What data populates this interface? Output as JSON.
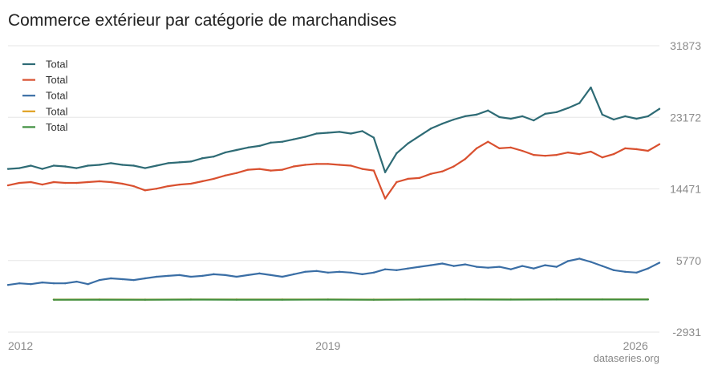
{
  "chart_data": {
    "type": "line",
    "title": "Commerce extérieur par catégorie de marchandises",
    "source": "dataseries.org",
    "xlim": [
      2012.0,
      2026.25
    ],
    "ylim": [
      -2931,
      31873
    ],
    "yticks": [
      31873,
      23172,
      14471,
      5770,
      -2931
    ],
    "xticks": [
      2012,
      2019,
      2026
    ],
    "legend_position": "top-left",
    "grid": true,
    "series": [
      {
        "name": "Total",
        "color": "#2e6b75",
        "points": [
          [
            2012.0,
            16900
          ],
          [
            2012.25,
            17000
          ],
          [
            2012.5,
            17300
          ],
          [
            2012.75,
            16900
          ],
          [
            2013.0,
            17300
          ],
          [
            2013.25,
            17200
          ],
          [
            2013.5,
            17000
          ],
          [
            2013.75,
            17300
          ],
          [
            2014.0,
            17400
          ],
          [
            2014.25,
            17600
          ],
          [
            2014.5,
            17400
          ],
          [
            2014.75,
            17300
          ],
          [
            2015.0,
            17000
          ],
          [
            2015.25,
            17300
          ],
          [
            2015.5,
            17600
          ],
          [
            2015.75,
            17700
          ],
          [
            2016.0,
            17800
          ],
          [
            2016.25,
            18200
          ],
          [
            2016.5,
            18400
          ],
          [
            2016.75,
            18900
          ],
          [
            2017.0,
            19200
          ],
          [
            2017.25,
            19500
          ],
          [
            2017.5,
            19700
          ],
          [
            2017.75,
            20100
          ],
          [
            2018.0,
            20200
          ],
          [
            2018.25,
            20500
          ],
          [
            2018.5,
            20800
          ],
          [
            2018.75,
            21200
          ],
          [
            2019.0,
            21300
          ],
          [
            2019.25,
            21400
          ],
          [
            2019.5,
            21200
          ],
          [
            2019.75,
            21500
          ],
          [
            2020.0,
            20700
          ],
          [
            2020.25,
            16500
          ],
          [
            2020.5,
            18800
          ],
          [
            2020.75,
            20000
          ],
          [
            2021.0,
            20900
          ],
          [
            2021.25,
            21800
          ],
          [
            2021.5,
            22400
          ],
          [
            2021.75,
            22900
          ],
          [
            2022.0,
            23300
          ],
          [
            2022.25,
            23500
          ],
          [
            2022.5,
            24000
          ],
          [
            2022.75,
            23200
          ],
          [
            2023.0,
            23000
          ],
          [
            2023.25,
            23300
          ],
          [
            2023.5,
            22800
          ],
          [
            2023.75,
            23600
          ],
          [
            2024.0,
            23800
          ],
          [
            2024.25,
            24300
          ],
          [
            2024.5,
            24900
          ],
          [
            2024.75,
            26800
          ],
          [
            2025.0,
            23500
          ],
          [
            2025.25,
            22900
          ],
          [
            2025.5,
            23300
          ],
          [
            2025.75,
            23000
          ],
          [
            2026.0,
            23300
          ],
          [
            2026.25,
            24200
          ]
        ]
      },
      {
        "name": "Total",
        "color": "#d9502f",
        "points": [
          [
            2012.0,
            14900
          ],
          [
            2012.25,
            15200
          ],
          [
            2012.5,
            15300
          ],
          [
            2012.75,
            15000
          ],
          [
            2013.0,
            15300
          ],
          [
            2013.25,
            15200
          ],
          [
            2013.5,
            15200
          ],
          [
            2013.75,
            15300
          ],
          [
            2014.0,
            15400
          ],
          [
            2014.25,
            15300
          ],
          [
            2014.5,
            15100
          ],
          [
            2014.75,
            14800
          ],
          [
            2015.0,
            14300
          ],
          [
            2015.25,
            14500
          ],
          [
            2015.5,
            14800
          ],
          [
            2015.75,
            15000
          ],
          [
            2016.0,
            15100
          ],
          [
            2016.25,
            15400
          ],
          [
            2016.5,
            15700
          ],
          [
            2016.75,
            16100
          ],
          [
            2017.0,
            16400
          ],
          [
            2017.25,
            16800
          ],
          [
            2017.5,
            16900
          ],
          [
            2017.75,
            16700
          ],
          [
            2018.0,
            16800
          ],
          [
            2018.25,
            17200
          ],
          [
            2018.5,
            17400
          ],
          [
            2018.75,
            17500
          ],
          [
            2019.0,
            17500
          ],
          [
            2019.25,
            17400
          ],
          [
            2019.5,
            17300
          ],
          [
            2019.75,
            16900
          ],
          [
            2020.0,
            16700
          ],
          [
            2020.25,
            13300
          ],
          [
            2020.5,
            15300
          ],
          [
            2020.75,
            15700
          ],
          [
            2021.0,
            15800
          ],
          [
            2021.25,
            16300
          ],
          [
            2021.5,
            16600
          ],
          [
            2021.75,
            17200
          ],
          [
            2022.0,
            18100
          ],
          [
            2022.25,
            19400
          ],
          [
            2022.5,
            20200
          ],
          [
            2022.75,
            19400
          ],
          [
            2023.0,
            19500
          ],
          [
            2023.25,
            19100
          ],
          [
            2023.5,
            18600
          ],
          [
            2023.75,
            18500
          ],
          [
            2024.0,
            18600
          ],
          [
            2024.25,
            18900
          ],
          [
            2024.5,
            18700
          ],
          [
            2024.75,
            19000
          ],
          [
            2025.0,
            18300
          ],
          [
            2025.25,
            18700
          ],
          [
            2025.5,
            19400
          ],
          [
            2025.75,
            19300
          ],
          [
            2026.0,
            19100
          ],
          [
            2026.25,
            19900
          ]
        ]
      },
      {
        "name": "Total",
        "color": "#3a6ea5",
        "points": [
          [
            2012.0,
            2800
          ],
          [
            2012.25,
            3000
          ],
          [
            2012.5,
            2900
          ],
          [
            2012.75,
            3100
          ],
          [
            2013.0,
            3000
          ],
          [
            2013.25,
            3000
          ],
          [
            2013.5,
            3200
          ],
          [
            2013.75,
            2900
          ],
          [
            2014.0,
            3400
          ],
          [
            2014.25,
            3600
          ],
          [
            2014.5,
            3500
          ],
          [
            2014.75,
            3400
          ],
          [
            2015.0,
            3600
          ],
          [
            2015.25,
            3800
          ],
          [
            2015.5,
            3900
          ],
          [
            2015.75,
            4000
          ],
          [
            2016.0,
            3800
          ],
          [
            2016.25,
            3900
          ],
          [
            2016.5,
            4100
          ],
          [
            2016.75,
            4000
          ],
          [
            2017.0,
            3800
          ],
          [
            2017.25,
            4000
          ],
          [
            2017.5,
            4200
          ],
          [
            2017.75,
            4000
          ],
          [
            2018.0,
            3800
          ],
          [
            2018.25,
            4100
          ],
          [
            2018.5,
            4400
          ],
          [
            2018.75,
            4500
          ],
          [
            2019.0,
            4300
          ],
          [
            2019.25,
            4400
          ],
          [
            2019.5,
            4300
          ],
          [
            2019.75,
            4100
          ],
          [
            2020.0,
            4300
          ],
          [
            2020.25,
            4700
          ],
          [
            2020.5,
            4600
          ],
          [
            2020.75,
            4800
          ],
          [
            2021.0,
            5000
          ],
          [
            2021.25,
            5200
          ],
          [
            2021.5,
            5400
          ],
          [
            2021.75,
            5100
          ],
          [
            2022.0,
            5300
          ],
          [
            2022.25,
            5000
          ],
          [
            2022.5,
            4900
          ],
          [
            2022.75,
            5000
          ],
          [
            2023.0,
            4700
          ],
          [
            2023.25,
            5100
          ],
          [
            2023.5,
            4800
          ],
          [
            2023.75,
            5200
          ],
          [
            2024.0,
            5000
          ],
          [
            2024.25,
            5700
          ],
          [
            2024.5,
            6000
          ],
          [
            2024.75,
            5600
          ],
          [
            2025.0,
            5100
          ],
          [
            2025.25,
            4600
          ],
          [
            2025.5,
            4400
          ],
          [
            2025.75,
            4300
          ],
          [
            2026.0,
            4800
          ],
          [
            2026.25,
            5500
          ]
        ]
      },
      {
        "name": "Total",
        "color": "#e0a020",
        "points": [
          [
            2013.0,
            1020
          ],
          [
            2014.0,
            1030
          ],
          [
            2015.0,
            1020
          ],
          [
            2016.0,
            1040
          ],
          [
            2017.0,
            1030
          ],
          [
            2018.0,
            1030
          ],
          [
            2019.0,
            1040
          ],
          [
            2020.0,
            1020
          ],
          [
            2021.0,
            1040
          ],
          [
            2022.0,
            1050
          ],
          [
            2023.0,
            1040
          ],
          [
            2024.0,
            1050
          ],
          [
            2025.0,
            1050
          ],
          [
            2026.0,
            1050
          ]
        ]
      },
      {
        "name": "Total",
        "color": "#3f8f3f",
        "points": [
          [
            2013.0,
            1000
          ],
          [
            2014.0,
            1010
          ],
          [
            2015.0,
            1000
          ],
          [
            2016.0,
            1020
          ],
          [
            2017.0,
            1010
          ],
          [
            2018.0,
            1010
          ],
          [
            2019.0,
            1020
          ],
          [
            2020.0,
            1000
          ],
          [
            2021.0,
            1020
          ],
          [
            2022.0,
            1030
          ],
          [
            2023.0,
            1020
          ],
          [
            2024.0,
            1030
          ],
          [
            2025.0,
            1030
          ],
          [
            2026.0,
            1030
          ]
        ]
      }
    ]
  }
}
